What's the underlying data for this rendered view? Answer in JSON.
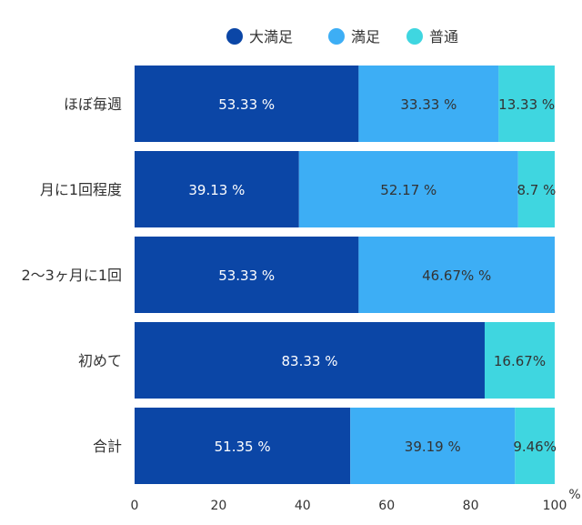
{
  "chart_data": {
    "type": "bar",
    "orientation": "horizontal",
    "stacked": true,
    "categories": [
      "ほぼ毎週",
      "月に1回程度",
      "2〜3ヶ月に1回",
      "初めて",
      "合計"
    ],
    "series": [
      {
        "name": "大満足",
        "color": "#0b46a6",
        "values": [
          53.33,
          39.13,
          53.33,
          83.33,
          51.35
        ],
        "labels": [
          "53.33 %",
          "39.13 %",
          "53.33 %",
          "83.33 %",
          "51.35 %"
        ]
      },
      {
        "name": "満足",
        "color": "#3daef5",
        "values": [
          33.33,
          52.17,
          46.67,
          0,
          39.19
        ],
        "labels": [
          "33.33 %",
          "52.17 %",
          "46.67% %",
          "",
          "39.19 %"
        ]
      },
      {
        "name": "普通",
        "color": "#3fd6e0",
        "values": [
          13.33,
          8.7,
          0,
          16.67,
          9.46
        ],
        "labels": [
          "13.33 %",
          "8.7 %",
          "",
          "16.67%",
          "9.46%"
        ]
      }
    ],
    "xlim": [
      0,
      100
    ],
    "xticks": [
      {
        "value": 0,
        "label": "0"
      },
      {
        "value": 20,
        "label": "20"
      },
      {
        "value": 40,
        "label": "40"
      },
      {
        "value": 60,
        "label": "60"
      },
      {
        "value": 80,
        "label": "80"
      },
      {
        "value": 100,
        "label": "100"
      }
    ],
    "x_unit": "%",
    "legend_position": "top",
    "grid": false
  }
}
